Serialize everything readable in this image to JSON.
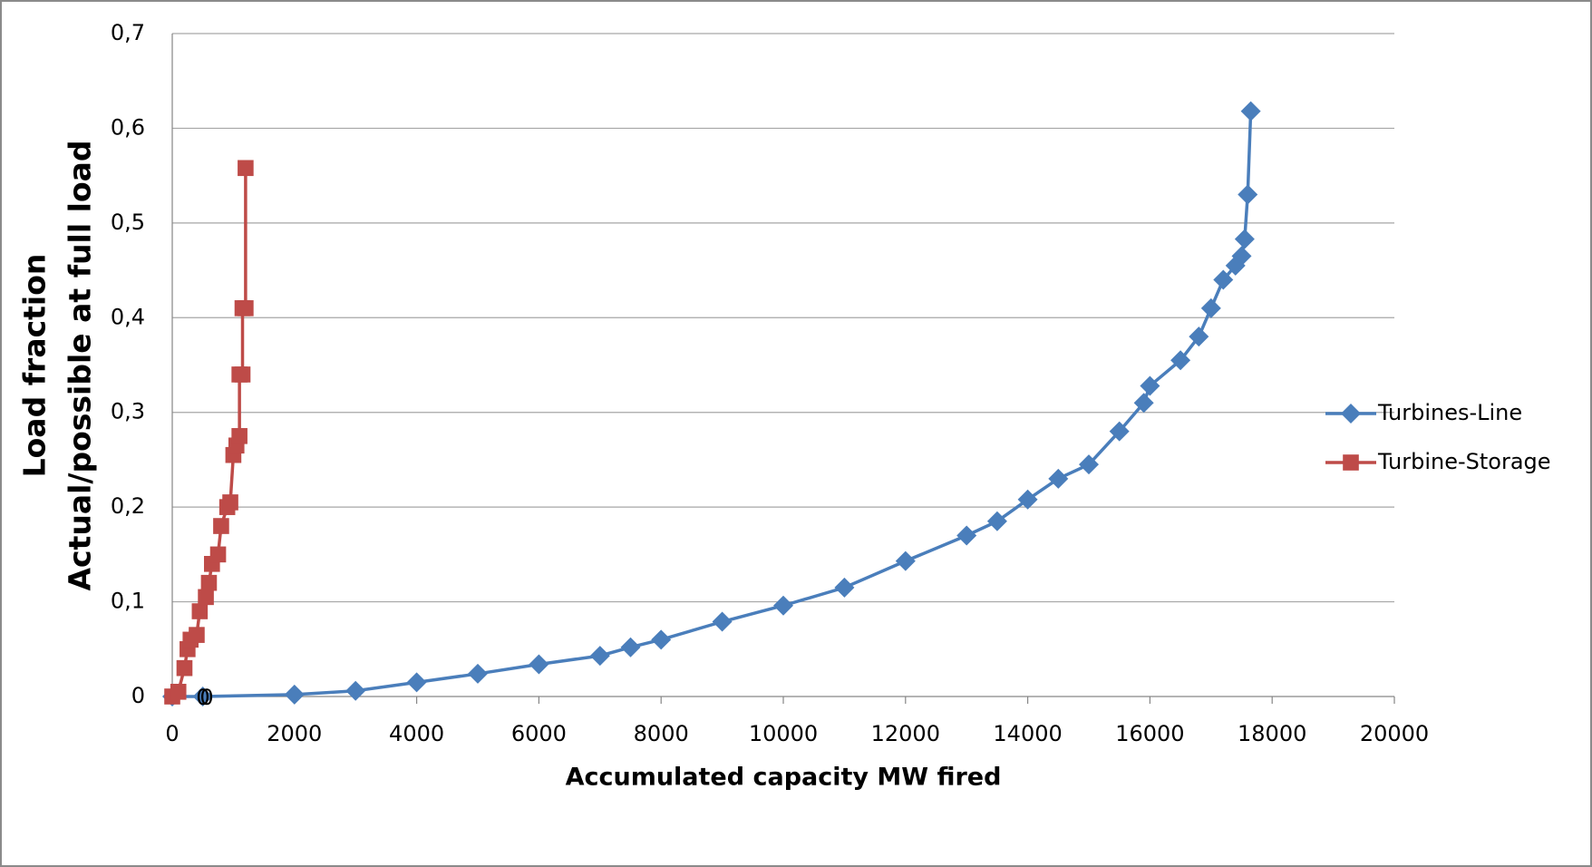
{
  "chart_data": {
    "type": "line",
    "xlabel": "Accumulated capacity MW fired",
    "ylabel": [
      "Load fraction",
      "Actual/possible at full load"
    ],
    "xlim": [
      0,
      20000
    ],
    "xticks": [
      0,
      2000,
      4000,
      6000,
      8000,
      10000,
      12000,
      14000,
      16000,
      18000,
      20000
    ],
    "ylim": [
      0,
      0.7
    ],
    "yticks": [
      0,
      {
        "value": 0.1,
        "label": "0,1"
      },
      {
        "value": 0.2,
        "label": "0,2"
      },
      {
        "value": 0.3,
        "label": "0,3"
      },
      {
        "value": 0.4,
        "label": "0,4"
      },
      {
        "value": 0.5,
        "label": "0,5"
      },
      {
        "value": 0.6,
        "label": "0,6"
      },
      {
        "value": 0.7,
        "label": "0,7"
      }
    ],
    "grid": true,
    "legend": "right",
    "annotations": [
      "0",
      "0"
    ],
    "series": [
      {
        "name": "Turbines-Line",
        "color": "#4a7ebb",
        "marker": "diamond",
        "x": [
          0,
          500,
          2000,
          3000,
          4000,
          5000,
          6000,
          7000,
          7500,
          8000,
          9000,
          10000,
          11000,
          12000,
          13000,
          13500,
          14000,
          14500,
          15000,
          15500,
          15900,
          16000,
          16500,
          16800,
          17000,
          17200,
          17400,
          17500,
          17550,
          17600,
          17650
        ],
        "values": [
          0,
          0,
          0.002,
          0.006,
          0.015,
          0.024,
          0.034,
          0.043,
          0.052,
          0.06,
          0.079,
          0.096,
          0.115,
          0.143,
          0.17,
          0.185,
          0.208,
          0.23,
          0.245,
          0.28,
          0.31,
          0.328,
          0.355,
          0.38,
          0.41,
          0.44,
          0.455,
          0.465,
          0.483,
          0.53,
          0.618
        ]
      },
      {
        "name": "Turbine-Storage",
        "color": "#be4b48",
        "marker": "square",
        "x": [
          0,
          100,
          200,
          250,
          300,
          400,
          450,
          550,
          600,
          650,
          750,
          800,
          900,
          950,
          1000,
          1050,
          1100,
          1100,
          1150,
          1150,
          1200,
          1200
        ],
        "values": [
          0,
          0.005,
          0.03,
          0.05,
          0.06,
          0.065,
          0.09,
          0.105,
          0.12,
          0.14,
          0.15,
          0.18,
          0.2,
          0.205,
          0.255,
          0.265,
          0.275,
          0.34,
          0.34,
          0.41,
          0.41,
          0.558
        ]
      }
    ]
  }
}
